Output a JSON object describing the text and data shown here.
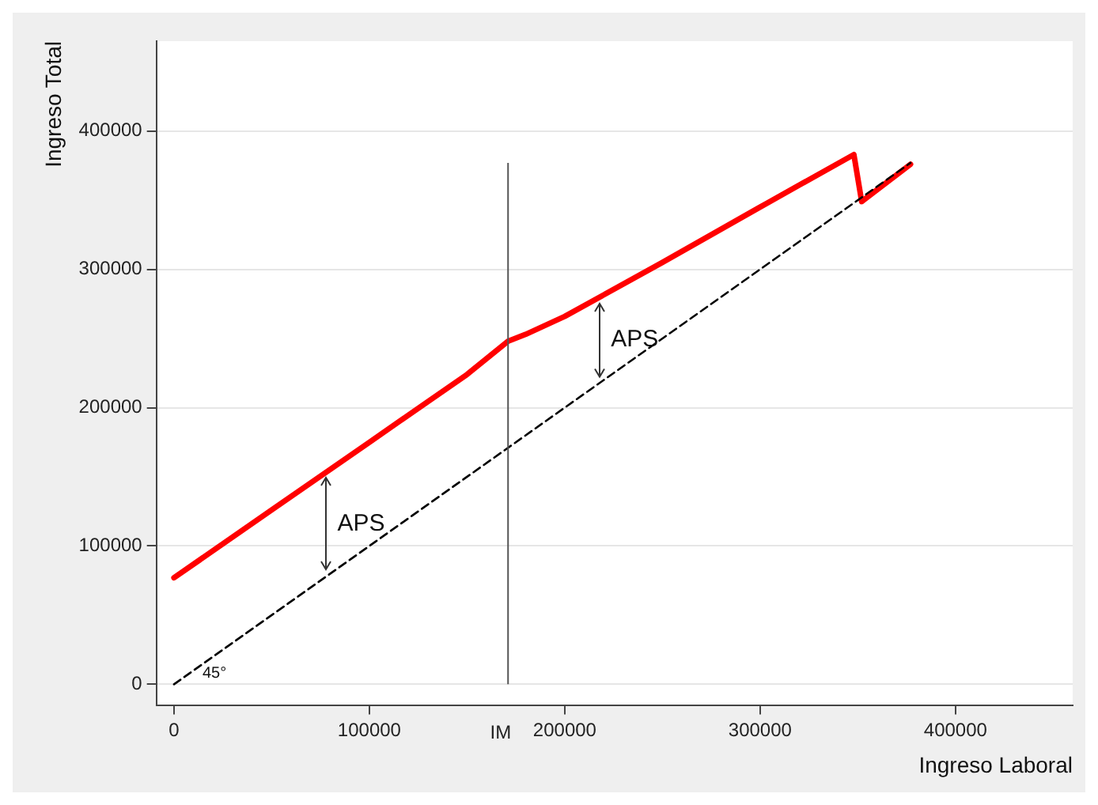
{
  "chart_data": {
    "type": "line",
    "xlabel": "Ingreso Laboral",
    "ylabel": "Ingreso Total",
    "xlim": [
      -9000,
      460000
    ],
    "ylim": [
      -15000,
      465000
    ],
    "xticks": [
      0,
      100000,
      200000,
      300000,
      400000
    ],
    "yticks": [
      0,
      100000,
      200000,
      300000,
      400000
    ],
    "grid": "y",
    "legend": false,
    "marker": "none",
    "series": [
      {
        "color": "#ff0000",
        "x": [
          0,
          50000,
          100000,
          150000,
          171000,
          180000,
          200000,
          250000,
          300000,
          348000,
          352000,
          377000
        ],
        "values": [
          77000,
          126000,
          175000,
          224000,
          248000,
          253000,
          266000,
          305000,
          345000,
          383000,
          349000,
          376000
        ]
      },
      {
        "color": "#000000",
        "line_style": "dashed",
        "x": [
          0,
          377000
        ],
        "values": [
          0,
          377000
        ]
      }
    ],
    "ref_lines": [
      {
        "axis": "x",
        "value": 171000,
        "label": "IM",
        "color": "#555555"
      }
    ],
    "annotations": [
      {
        "text": "APS",
        "x": 78000,
        "y": 153440
      },
      {
        "text": "APS",
        "x": 218000,
        "y": 280040
      },
      {
        "text": "45°",
        "x": 0,
        "y": 0
      }
    ]
  }
}
